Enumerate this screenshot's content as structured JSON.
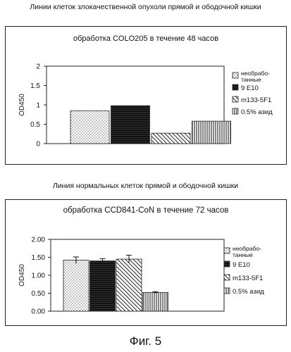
{
  "headings": {
    "top": "Линии клеток злокачественной опухоли прямой и ободочной кишки",
    "bottom": "Линия нормальных клеток прямой и ободочной кишки"
  },
  "figure_caption": "Фиг. 5",
  "chart_data": [
    {
      "type": "bar",
      "title": "обработка COLO205 в течение 48 часов",
      "ylabel": "OD450",
      "xlabel": "",
      "ylim": [
        0,
        2
      ],
      "yticks": [
        "0",
        "0.5",
        "1",
        "1.5",
        "2"
      ],
      "grid": false,
      "legend_position": "right",
      "series": [
        {
          "name": "необрабо-танные",
          "value": 0.85,
          "pattern": "dots"
        },
        {
          "name": "9 E10",
          "value": 0.98,
          "pattern": "solid-dark"
        },
        {
          "name": "m133-5F1",
          "value": 0.27,
          "pattern": "diagonal"
        },
        {
          "name": "0.5% азид",
          "value": 0.58,
          "pattern": "vertical"
        }
      ]
    },
    {
      "type": "bar",
      "title": "обработка CCD841-CoN в течение 72 часов",
      "ylabel": "OD450",
      "xlabel": "",
      "ylim": [
        0,
        2
      ],
      "yticks": [
        "0.00",
        "0.50",
        "1.00",
        "1.50",
        "2.00"
      ],
      "grid": false,
      "legend_position": "right",
      "series": [
        {
          "name": "необрабо-танные",
          "value": 1.42,
          "error": 0.09,
          "pattern": "dots"
        },
        {
          "name": "9 E10",
          "value": 1.4,
          "error": 0.06,
          "pattern": "solid-dark"
        },
        {
          "name": "m133-5F1",
          "value": 1.45,
          "error": 0.11,
          "pattern": "diagonal"
        },
        {
          "name": "0.5% азид",
          "value": 0.52,
          "error": 0.02,
          "pattern": "vertical"
        }
      ]
    }
  ]
}
